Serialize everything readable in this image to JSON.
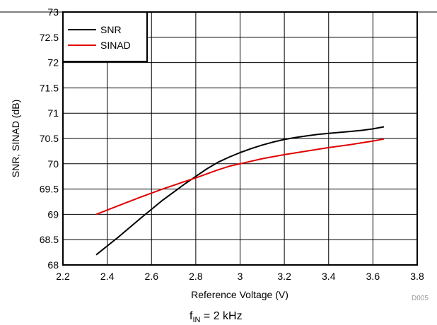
{
  "chart_data": {
    "type": "line",
    "title": "",
    "xlabel": "Reference Voltage (V)",
    "ylabel": "SNR, SINAD (dB)",
    "xlim": [
      2.2,
      3.8
    ],
    "ylim": [
      68,
      73
    ],
    "xticks": [
      2.2,
      2.4,
      2.6,
      2.8,
      3.0,
      3.2,
      3.4,
      3.6,
      3.8
    ],
    "xtick_labels": [
      "2.2",
      "2.4",
      "2.6",
      "2.8",
      "3",
      "3.2",
      "3.4",
      "3.6",
      "3.8"
    ],
    "yticks": [
      68,
      68.5,
      69,
      69.5,
      70,
      70.5,
      71,
      71.5,
      72,
      72.5,
      73
    ],
    "ytick_labels": [
      "68",
      "68.5",
      "69",
      "69.5",
      "70",
      "70.5",
      "71",
      "71.5",
      "72",
      "72.5",
      "73"
    ],
    "grid": true,
    "legend_position": "top-left",
    "series": [
      {
        "name": "SNR",
        "color": "#000000",
        "x": [
          2.35,
          2.45,
          2.55,
          2.65,
          2.75,
          2.8,
          2.85,
          2.9,
          2.95,
          3.0,
          3.05,
          3.1,
          3.15,
          3.2,
          3.25,
          3.3,
          3.35,
          3.4,
          3.45,
          3.5,
          3.55,
          3.6,
          3.65
        ],
        "y": [
          68.2,
          68.55,
          68.92,
          69.28,
          69.6,
          69.75,
          69.9,
          70.03,
          70.13,
          70.22,
          70.3,
          70.37,
          70.43,
          70.48,
          70.52,
          70.55,
          70.58,
          70.6,
          70.62,
          70.64,
          70.66,
          70.69,
          70.73
        ]
      },
      {
        "name": "SINAD",
        "color": "#e00000",
        "x": [
          2.35,
          2.45,
          2.55,
          2.65,
          2.75,
          2.8,
          2.85,
          2.9,
          2.95,
          3.0,
          3.1,
          3.2,
          3.3,
          3.4,
          3.5,
          3.6,
          3.65
        ],
        "y": [
          69.0,
          69.17,
          69.34,
          69.5,
          69.65,
          69.72,
          69.8,
          69.88,
          69.95,
          70.0,
          70.1,
          70.18,
          70.25,
          70.32,
          70.38,
          70.45,
          70.49
        ]
      }
    ],
    "annotations": {
      "code": "D005",
      "caption_main": "f",
      "caption_sub": "IN",
      "caption_rest": " = 2 kHz"
    }
  }
}
